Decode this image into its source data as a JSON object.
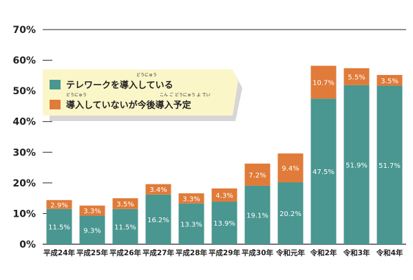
{
  "chart_data": {
    "type": "bar",
    "stacked": true,
    "categories": [
      "平成24年",
      "平成25年",
      "平成26年",
      "平成27年",
      "平成28年",
      "平成29年",
      "平成30年",
      "令和元年",
      "令和2年",
      "令和3年",
      "令和4年"
    ],
    "series": [
      {
        "name": "テレワークを導入している",
        "color": "#4a9690",
        "values": [
          11.5,
          9.3,
          11.5,
          16.2,
          13.3,
          13.9,
          19.1,
          20.2,
          47.5,
          51.9,
          51.7
        ],
        "labels": [
          "11.5%",
          "9.3%",
          "11.5%",
          "16.2%",
          "13.3%",
          "13.9%",
          "19.1%",
          "20.2%",
          "47.5%",
          "51.9%",
          "51.7%"
        ]
      },
      {
        "name": "導入していないが今後導入予定",
        "color": "#e07b39",
        "values": [
          2.9,
          3.3,
          3.5,
          3.4,
          3.3,
          4.3,
          7.2,
          9.4,
          10.7,
          5.5,
          3.5
        ],
        "labels": [
          "2.9%",
          "3.3%",
          "3.5%",
          "3.4%",
          "3.3%",
          "4.3%",
          "7.2%",
          "9.4%",
          "10.7%",
          "5.5%",
          "3.5%"
        ]
      }
    ],
    "ylim": [
      0,
      70
    ],
    "yticks": [
      "0%",
      "10%",
      "20%",
      "30%",
      "40%",
      "50%",
      "60%",
      "70%"
    ],
    "grid": false,
    "legend_position": "top-left",
    "legend_ruby": {
      "series0": "どうにゅう",
      "series1_a": "どうにゅう",
      "series1_b": "こん ご どうにゅう よ てい"
    }
  }
}
